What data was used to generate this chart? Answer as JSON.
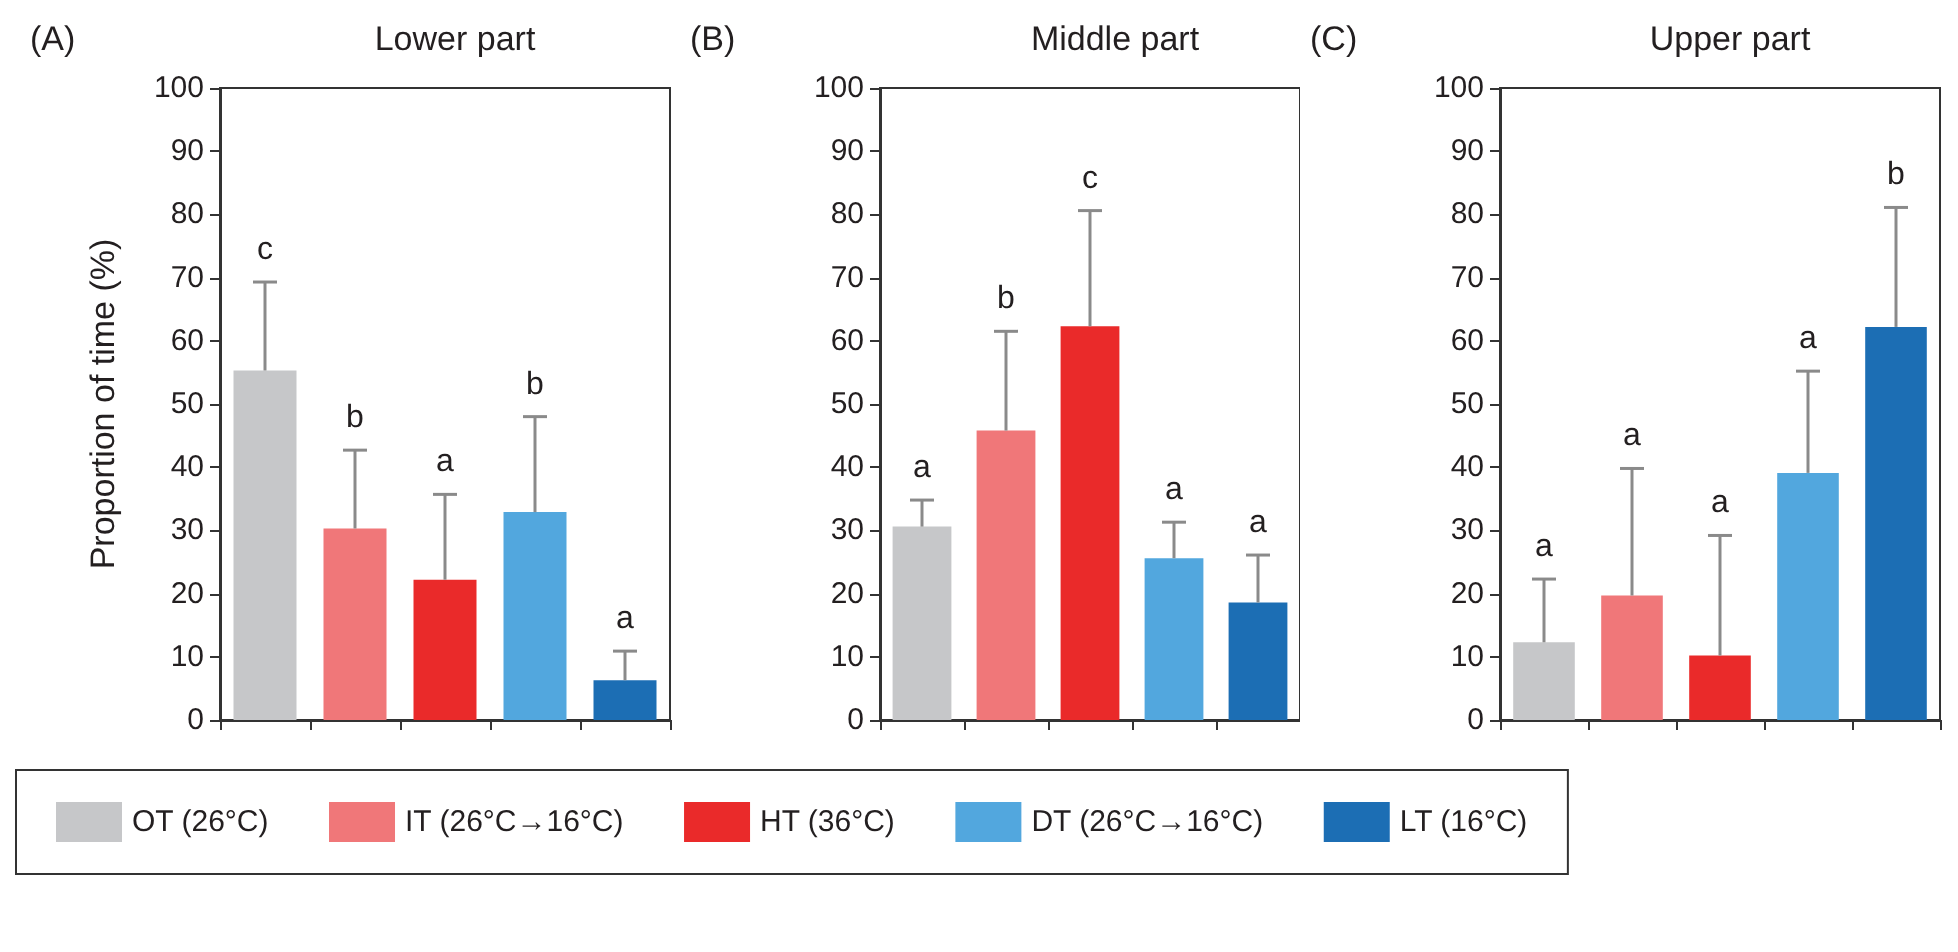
{
  "chart_data": [
    {
      "type": "bar",
      "title": "Lower part",
      "subtitle": "(A)",
      "ylabel": "Proportion of time (%)",
      "categories": [
        null,
        null,
        null,
        null,
        null
      ],
      "ylim": [
        0,
        100
      ],
      "yticks": [
        0,
        10,
        20,
        30,
        40,
        50,
        60,
        70,
        80,
        90,
        100
      ],
      "legend": "bottom",
      "annotations": [
        "c",
        "b",
        "a",
        "b",
        "a"
      ],
      "series": [
        {
          "name": "OT (26°C)",
          "color": "#c6c7c9",
          "values": [
            55.3,
            null,
            null,
            null,
            null
          ],
          "errors": [
            [
              55.3,
              69.3
            ],
            null,
            null,
            null,
            null
          ]
        },
        {
          "name": "IT (26°C→16°C)",
          "color": "#f07779",
          "values": [
            null,
            30.3,
            null,
            null,
            null
          ],
          "errors": [
            null,
            [
              30.3,
              42.7
            ],
            null,
            null,
            null
          ]
        },
        {
          "name": "HT (36°C)",
          "color": "#ea2a2a",
          "values": [
            null,
            null,
            22.2,
            null,
            null
          ],
          "errors": [
            null,
            null,
            [
              22.2,
              35.7
            ],
            null,
            null
          ]
        },
        {
          "name": "DT (26°C→16°C)",
          "color": "#52a7de",
          "values": [
            null,
            null,
            null,
            32.9,
            null
          ],
          "errors": [
            null,
            null,
            null,
            [
              32.9,
              48.0
            ],
            null
          ]
        },
        {
          "name": "LT (16°C)",
          "color": "#1c6eb4",
          "values": [
            null,
            null,
            null,
            null,
            6.3
          ],
          "errors": [
            null,
            null,
            null,
            null,
            [
              6.3,
              10.9
            ]
          ]
        }
      ]
    },
    {
      "type": "bar",
      "title": "Middle part",
      "subtitle": "(B)",
      "categories": [
        null,
        null,
        null,
        null,
        null
      ],
      "ylim": [
        0,
        100
      ],
      "yticks": [
        0,
        10,
        20,
        30,
        40,
        50,
        60,
        70,
        80,
        90,
        100
      ],
      "annotations": [
        "a",
        "b",
        "c",
        "a",
        "a"
      ],
      "series": [
        {
          "color": "#c6c7c9",
          "values": [
            30.6,
            null,
            null,
            null,
            null
          ],
          "errors": [
            [
              30.6,
              34.8
            ],
            null,
            null,
            null,
            null
          ]
        },
        {
          "color": "#f07779",
          "values": [
            null,
            45.8,
            null,
            null,
            null
          ],
          "errors": [
            null,
            [
              45.8,
              61.5
            ],
            null,
            null,
            null
          ]
        },
        {
          "color": "#ea2a2a",
          "values": [
            null,
            null,
            62.3,
            null,
            null
          ],
          "errors": [
            null,
            null,
            [
              62.3,
              80.6
            ],
            null,
            null
          ]
        },
        {
          "color": "#52a7de",
          "values": [
            null,
            null,
            null,
            25.6,
            null
          ],
          "errors": [
            null,
            null,
            null,
            [
              25.6,
              31.3
            ],
            null
          ]
        },
        {
          "color": "#1c6eb4",
          "values": [
            null,
            null,
            null,
            null,
            18.6
          ],
          "errors": [
            null,
            null,
            null,
            null,
            [
              18.6,
              26.1
            ]
          ]
        }
      ]
    },
    {
      "type": "bar",
      "title": "Upper part",
      "subtitle": "(C)",
      "categories": [
        null,
        null,
        null,
        null,
        null
      ],
      "ylim": [
        0,
        100
      ],
      "yticks": [
        0,
        10,
        20,
        30,
        40,
        50,
        60,
        70,
        80,
        90,
        100
      ],
      "annotations": [
        "a",
        "a",
        "a",
        "a",
        "b"
      ],
      "series": [
        {
          "color": "#c6c7c9",
          "values": [
            12.3,
            null,
            null,
            null,
            null
          ],
          "errors": [
            [
              12.3,
              22.3
            ],
            null,
            null,
            null,
            null
          ]
        },
        {
          "color": "#f07779",
          "values": [
            null,
            19.7,
            null,
            null,
            null
          ],
          "errors": [
            null,
            [
              19.7,
              39.8
            ],
            null,
            null,
            null
          ]
        },
        {
          "color": "#ea2a2a",
          "values": [
            null,
            null,
            10.2,
            null,
            null
          ],
          "errors": [
            null,
            null,
            [
              10.2,
              29.2
            ],
            null,
            null
          ]
        },
        {
          "color": "#52a7de",
          "values": [
            null,
            null,
            null,
            39.1,
            null
          ],
          "errors": [
            null,
            null,
            null,
            [
              39.1,
              55.2
            ],
            null
          ]
        },
        {
          "color": "#1c6eb4",
          "values": [
            null,
            null,
            null,
            null,
            62.2
          ],
          "errors": [
            null,
            null,
            null,
            null,
            [
              62.2,
              81.1
            ]
          ]
        }
      ]
    }
  ]
}
